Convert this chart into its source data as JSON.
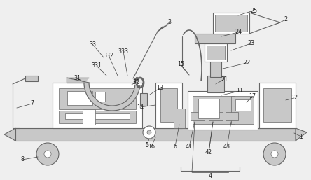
{
  "bg": "#efefef",
  "lc": "#666666",
  "fc": "#c8c8c8",
  "wc": "#ffffff",
  "dk": "#222222",
  "lw": 0.8,
  "lt": 0.5,
  "fs": 5.8
}
